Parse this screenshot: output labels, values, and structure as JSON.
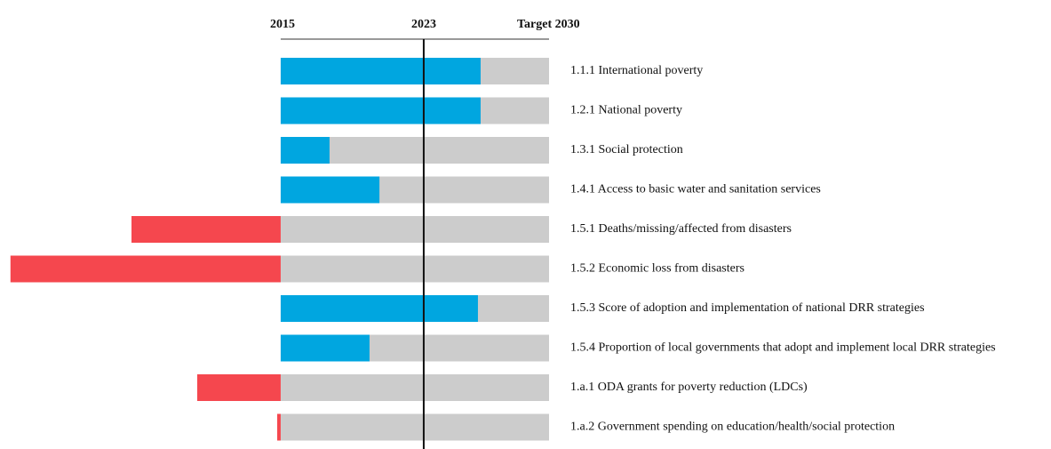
{
  "chart_data": {
    "type": "bar",
    "orientation": "horizontal",
    "categories": [
      "1.1.1 International poverty",
      "1.2.1 National poverty",
      "1.3.1 Social protection",
      "1.4.1 Access to basic water and sanitation services",
      "1.5.1 Deaths/missing/affected from disasters",
      "1.5.2 Economic loss from disasters",
      "1.5.3 Score of adoption and implementation of national DRR strategies",
      "1.5.4 Proportion of local governments that adopt and implement local DRR strategies",
      "1.a.1 ODA grants for poverty reduction (LDCs)",
      "1.a.2 Government spending on education/health/social protection"
    ],
    "values": [
      74.5,
      74.5,
      18.2,
      36.8,
      -55.6,
      -100.7,
      73.5,
      33.1,
      -31.1,
      -1.3
    ],
    "xlim": [
      -104.6,
      100
    ],
    "xticks": [
      {
        "value": 0,
        "label": "2015"
      },
      {
        "value": 53.3,
        "label": "2023"
      },
      {
        "value": 100,
        "label": "Target 2030"
      }
    ],
    "positive_color": "#00a6e0",
    "negative_color": "#f5474e",
    "track_color": "#cccccc"
  }
}
